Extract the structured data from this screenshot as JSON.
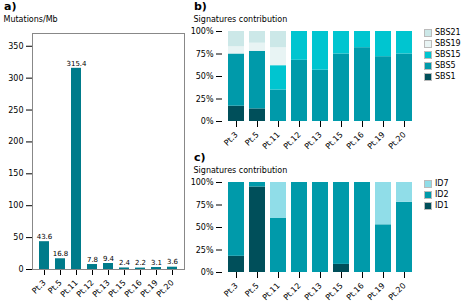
{
  "chart_data": [
    {
      "type": "bar",
      "title": "a)",
      "categories": [
        "Pt.3",
        "Pt.5",
        "Pt.11",
        "Pt.12",
        "Pt.13",
        "Pt.15",
        "Pt.16",
        "Pt.19",
        "Pt.20"
      ],
      "values": [
        43.6,
        16.8,
        315.4,
        7.8,
        9.4,
        2.4,
        2.2,
        3.1,
        3.6
      ],
      "color": "#007b8a",
      "ylabel": "Mutations/Mb",
      "ylim": [
        0,
        370
      ],
      "yticks": [
        0,
        50,
        100,
        150,
        200,
        250,
        300,
        350
      ],
      "data_labels": true
    },
    {
      "type": "bar",
      "title": "b)",
      "stacked": true,
      "categories": [
        "Pt.3",
        "Pt.5",
        "Pt.11",
        "Pt.12",
        "Pt.13",
        "Pt.15",
        "Pt.16",
        "Pt.19",
        "Pt.20"
      ],
      "series": [
        {
          "name": "SBS1",
          "color": "#004f5a",
          "values": [
            0.17,
            0.14,
            0.0,
            0.0,
            0.0,
            0.0,
            0.0,
            0.0,
            0.0
          ]
        },
        {
          "name": "SBS5",
          "color": "#009aaa",
          "values": [
            0.58,
            0.64,
            0.35,
            0.68,
            0.57,
            0.75,
            0.82,
            0.72,
            0.75
          ]
        },
        {
          "name": "SBS15",
          "color": "#00c5d0",
          "values": [
            0.0,
            0.0,
            0.27,
            0.32,
            0.43,
            0.25,
            0.18,
            0.28,
            0.25
          ]
        },
        {
          "name": "SBS19",
          "color": "#e8f4f4",
          "values": [
            0.08,
            0.09,
            0.2,
            0.0,
            0.0,
            0.0,
            0.0,
            0.0,
            0.0
          ]
        },
        {
          "name": "SBS21",
          "color": "#cce8e8",
          "values": [
            0.17,
            0.13,
            0.18,
            0.0,
            0.0,
            0.0,
            0.0,
            0.0,
            0.0
          ]
        }
      ],
      "ylabel": "Signatures contribution",
      "ylim": [
        0,
        1.0
      ],
      "yticks": [
        {
          "value": 0,
          "label": "0%"
        },
        {
          "value": 0.25,
          "label": "25%"
        },
        {
          "value": 0.5,
          "label": "50%"
        },
        {
          "value": 0.75,
          "label": "75%"
        },
        {
          "value": 1.0,
          "label": "100%"
        }
      ],
      "legend": "upper right"
    },
    {
      "type": "bar",
      "title": "c)",
      "stacked": true,
      "categories": [
        "Pt.3",
        "Pt.5",
        "Pt.11",
        "Pt.12",
        "Pt.13",
        "Pt.15",
        "Pt.16",
        "Pt.19",
        "Pt.20"
      ],
      "series": [
        {
          "name": "ID1",
          "color": "#004f5a",
          "values": [
            0.18,
            0.95,
            0.0,
            0.0,
            0.0,
            0.09,
            0.0,
            0.0,
            0.0
          ]
        },
        {
          "name": "ID2",
          "color": "#009aaa",
          "values": [
            0.82,
            0.05,
            0.6,
            1.0,
            1.0,
            0.91,
            1.0,
            0.53,
            0.78
          ]
        },
        {
          "name": "ID7",
          "color": "#90dde8",
          "values": [
            0.0,
            0.0,
            0.4,
            0.0,
            0.0,
            0.0,
            0.0,
            0.47,
            0.22
          ]
        }
      ],
      "ylabel": "Signatures contribution",
      "ylim": [
        0,
        1.0
      ],
      "yticks": [
        {
          "value": 0,
          "label": "0%"
        },
        {
          "value": 0.25,
          "label": "25%"
        },
        {
          "value": 0.5,
          "label": "50%"
        },
        {
          "value": 0.75,
          "label": "75%"
        },
        {
          "value": 1.0,
          "label": "100%"
        }
      ],
      "legend": "upper right"
    }
  ]
}
